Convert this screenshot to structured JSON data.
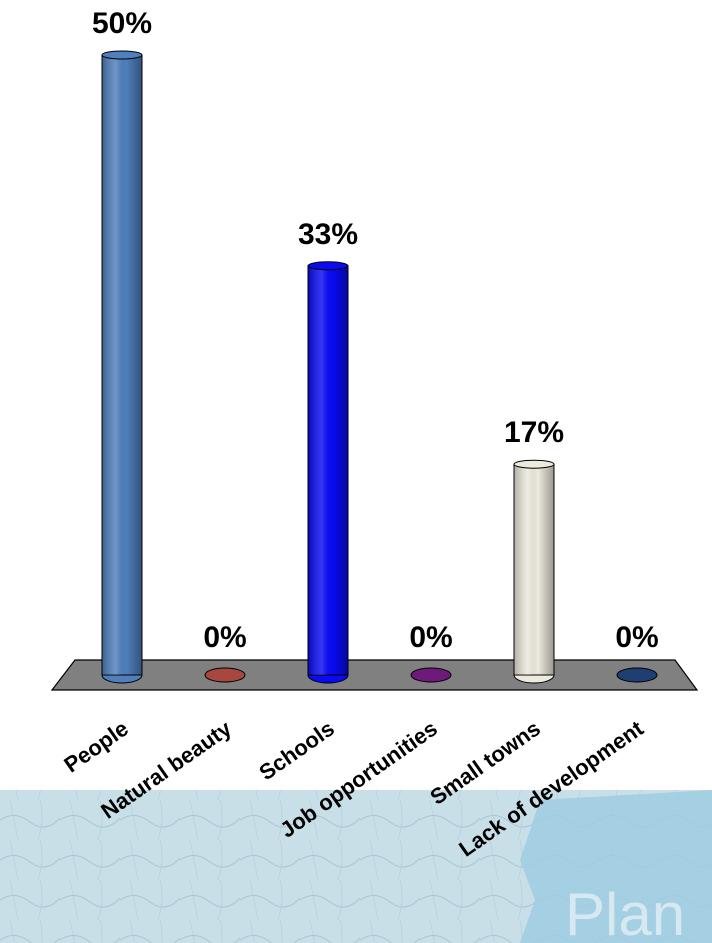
{
  "chart_data": {
    "type": "bar",
    "categories": [
      "People",
      "Natural beauty",
      "Schools",
      "Job opportunities",
      "Small towns",
      "Lack of development"
    ],
    "values": [
      50,
      0,
      33,
      0,
      17,
      0
    ],
    "value_labels": [
      "50%",
      "0%",
      "33%",
      "0%",
      "17%",
      "0%"
    ],
    "colors": [
      "#4f7fbd",
      "#a84640",
      "#0a0af5",
      "#6e1a7a",
      "#ece9dd",
      "#1f3f74"
    ],
    "ylim": [
      0,
      50
    ],
    "grid": false,
    "legend": "none"
  },
  "background": {
    "logo_text": "Plan",
    "map_tint": "#a9cfe0"
  }
}
